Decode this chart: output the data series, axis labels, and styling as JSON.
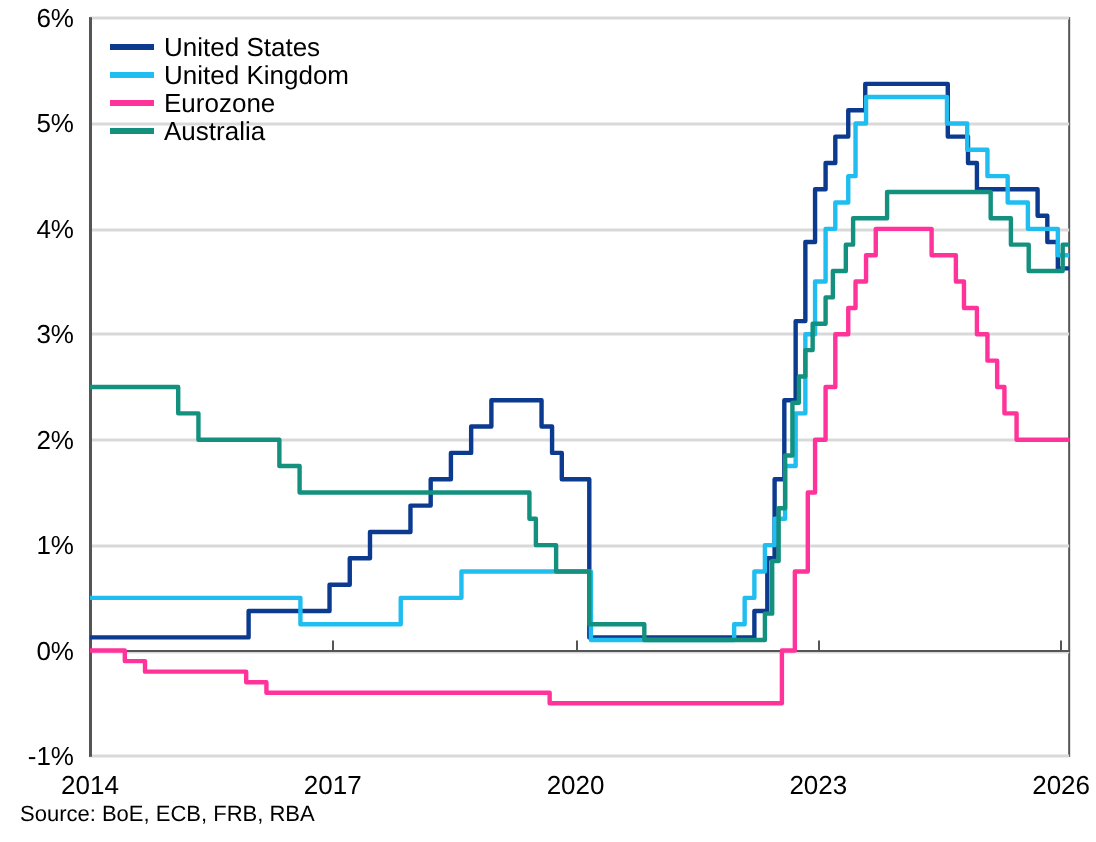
{
  "chart_data": {
    "type": "step",
    "annotations": [
      "Source: BoE, ECB, FRB, RBA"
    ],
    "xlim": [
      2014,
      2026.1
    ],
    "xticks": [
      2014,
      2017,
      2020,
      2023,
      2026
    ],
    "ylim": [
      -1,
      6
    ],
    "yticks": [
      {
        "value": -1,
        "label": "-1%"
      },
      {
        "value": 0,
        "label": "0%"
      },
      {
        "value": 1,
        "label": "1%"
      },
      {
        "value": 2,
        "label": "2%"
      },
      {
        "value": 3,
        "label": "3%"
      },
      {
        "value": 4,
        "label": "4%"
      },
      {
        "value": 5,
        "label": "5%"
      },
      {
        "value": 6,
        "label": "6%"
      }
    ],
    "grid": "y",
    "legend": "top left",
    "marker": "none",
    "line_style": "solid",
    "series": [
      {
        "name": "United States",
        "color": "#0b3a8f",
        "x": [
          2014,
          2015.96,
          2016.96,
          2017.21,
          2017.46,
          2017.96,
          2018.21,
          2018.46,
          2018.71,
          2018.96,
          2019.58,
          2019.71,
          2019.83,
          2020.17,
          2022.21,
          2022.37,
          2022.46,
          2022.58,
          2022.72,
          2022.84,
          2022.96,
          2023.09,
          2023.21,
          2023.37,
          2023.58,
          2024.6,
          2024.85,
          2024.96,
          2025.71,
          2025.83,
          2025.96,
          2026.1
        ],
        "values": [
          0.125,
          0.375,
          0.625,
          0.875,
          1.125,
          1.375,
          1.625,
          1.875,
          2.125,
          2.375,
          2.125,
          1.875,
          1.625,
          0.125,
          0.375,
          0.875,
          1.625,
          2.375,
          3.125,
          3.875,
          4.375,
          4.625,
          4.875,
          5.125,
          5.375,
          4.875,
          4.625,
          4.375,
          4.125,
          3.875,
          3.625,
          3.625
        ]
      },
      {
        "name": "United Kingdom",
        "color": "#1fbdf0",
        "x": [
          2014,
          2016.6,
          2017.84,
          2018.59,
          2020.19,
          2021.96,
          2022.09,
          2022.21,
          2022.34,
          2022.46,
          2022.59,
          2022.72,
          2022.84,
          2022.96,
          2023.09,
          2023.21,
          2023.37,
          2023.46,
          2023.59,
          2024.59,
          2024.84,
          2025.09,
          2025.34,
          2025.59,
          2025.96,
          2026.1
        ],
        "values": [
          0.5,
          0.25,
          0.5,
          0.75,
          0.1,
          0.25,
          0.5,
          0.75,
          1.0,
          1.25,
          1.75,
          2.25,
          3.0,
          3.5,
          4.0,
          4.25,
          4.5,
          5.0,
          5.25,
          5.0,
          4.75,
          4.5,
          4.25,
          4.0,
          3.75,
          3.75
        ]
      },
      {
        "name": "Eurozone",
        "color": "#ff3399",
        "x": [
          2014,
          2014.43,
          2014.68,
          2015.93,
          2016.18,
          2019.68,
          2022.55,
          2022.71,
          2022.87,
          2022.96,
          2023.09,
          2023.21,
          2023.37,
          2023.46,
          2023.59,
          2023.71,
          2024.4,
          2024.7,
          2024.8,
          2024.96,
          2025.09,
          2025.21,
          2025.3,
          2025.45,
          2026.1
        ],
        "values": [
          0,
          -0.1,
          -0.2,
          -0.3,
          -0.4,
          -0.5,
          0,
          0.75,
          1.5,
          2.0,
          2.5,
          3.0,
          3.25,
          3.5,
          3.75,
          4.0,
          3.75,
          3.5,
          3.25,
          3.0,
          2.75,
          2.5,
          2.25,
          2.0,
          2.0
        ]
      },
      {
        "name": "Australia",
        "color": "#13917e",
        "x": [
          2014,
          2015.09,
          2015.34,
          2016.34,
          2016.59,
          2019.43,
          2019.51,
          2019.76,
          2020.17,
          2020.85,
          2022.34,
          2022.43,
          2022.51,
          2022.59,
          2022.68,
          2022.76,
          2022.84,
          2022.93,
          2023.09,
          2023.18,
          2023.34,
          2023.43,
          2023.85,
          2025.13,
          2025.38,
          2025.6,
          2026.02,
          2026.1
        ],
        "values": [
          2.5,
          2.25,
          2.0,
          1.75,
          1.5,
          1.25,
          1.0,
          0.75,
          0.25,
          0.1,
          0.35,
          0.85,
          1.35,
          1.85,
          2.35,
          2.6,
          2.85,
          3.1,
          3.35,
          3.6,
          3.85,
          4.1,
          4.35,
          4.1,
          3.85,
          3.6,
          3.85,
          3.85
        ]
      }
    ]
  }
}
